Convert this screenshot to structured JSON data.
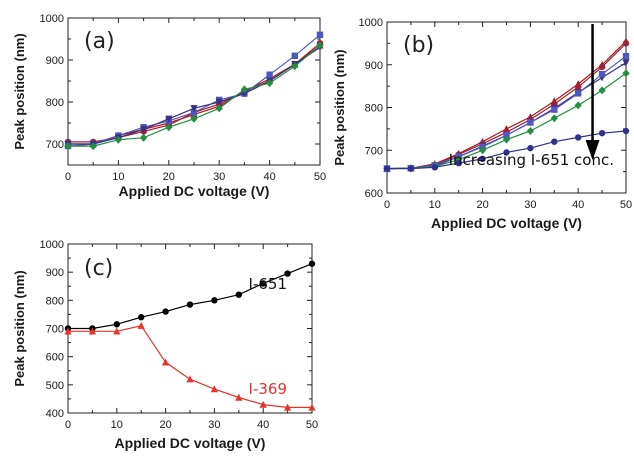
{
  "chart_data": [
    {
      "panel": "(a)",
      "type": "line",
      "xlabel": "Applied DC voltage (V)",
      "ylabel": "Peak position (nm)",
      "xlim": [
        0,
        50
      ],
      "ylim": [
        650,
        1000
      ],
      "xticks": [
        0,
        10,
        20,
        30,
        40,
        50
      ],
      "yticks": [
        700,
        800,
        900,
        1000
      ],
      "x": [
        0,
        5,
        10,
        15,
        20,
        25,
        30,
        35,
        40,
        45,
        50
      ],
      "series": [
        {
          "color": "#a0203a",
          "marker": "circle",
          "values": [
            705,
            705,
            715,
            730,
            745,
            775,
            795,
            825,
            850,
            890,
            940
          ]
        },
        {
          "color": "#b01818",
          "marker": "triangle",
          "values": [
            700,
            700,
            720,
            735,
            750,
            770,
            790,
            825,
            855,
            890,
            935
          ]
        },
        {
          "color": "#4e58c0",
          "marker": "square",
          "values": [
            695,
            700,
            720,
            740,
            755,
            775,
            805,
            820,
            865,
            910,
            960
          ]
        },
        {
          "color": "#3a2f80",
          "marker": "triangle-down",
          "values": [
            700,
            700,
            715,
            735,
            760,
            785,
            800,
            820,
            850,
            890,
            930
          ]
        },
        {
          "color": "#209040",
          "marker": "diamond",
          "values": [
            695,
            695,
            710,
            715,
            740,
            760,
            785,
            830,
            845,
            885,
            935
          ]
        }
      ]
    },
    {
      "panel": "(b)",
      "type": "line",
      "xlabel": "Applied DC voltage (V)",
      "ylabel": "Peak position (nm)",
      "xlim": [
        0,
        50
      ],
      "ylim": [
        600,
        1000
      ],
      "xticks": [
        0,
        10,
        20,
        30,
        40,
        50
      ],
      "yticks": [
        600,
        700,
        800,
        900,
        1000
      ],
      "annotation": "Increasing I-651 conc.",
      "x": [
        0,
        5,
        10,
        15,
        20,
        25,
        30,
        35,
        40,
        45,
        50
      ],
      "series": [
        {
          "color": "#b01818",
          "marker": "triangle",
          "values": [
            657,
            658,
            668,
            692,
            720,
            750,
            778,
            815,
            855,
            900,
            955
          ]
        },
        {
          "color": "#a0203a",
          "marker": "circle",
          "values": [
            657,
            658,
            665,
            690,
            715,
            742,
            772,
            808,
            848,
            895,
            950
          ]
        },
        {
          "color": "#3a2f80",
          "marker": "triangle-down",
          "values": [
            657,
            658,
            663,
            685,
            710,
            735,
            765,
            798,
            835,
            870,
            905
          ]
        },
        {
          "color": "#4e58c0",
          "marker": "square",
          "values": [
            657,
            658,
            665,
            685,
            708,
            735,
            765,
            795,
            833,
            878,
            920
          ]
        },
        {
          "color": "#209040",
          "marker": "diamond",
          "values": [
            657,
            658,
            662,
            678,
            700,
            725,
            745,
            775,
            805,
            840,
            880
          ]
        },
        {
          "color": "#303090",
          "marker": "circle",
          "values": [
            657,
            657,
            660,
            670,
            680,
            695,
            705,
            720,
            730,
            740,
            745
          ]
        }
      ]
    },
    {
      "panel": "(c)",
      "type": "line",
      "xlabel": "Applied DC voltage (V)",
      "ylabel": "Peak position (nm)",
      "xlim": [
        0,
        50
      ],
      "ylim": [
        400,
        1000
      ],
      "xticks": [
        0,
        10,
        20,
        30,
        40,
        50
      ],
      "yticks": [
        400,
        500,
        600,
        700,
        800,
        900,
        1000
      ],
      "x": [
        0,
        5,
        10,
        15,
        20,
        25,
        30,
        35,
        40,
        45,
        50
      ],
      "series": [
        {
          "name": "I-651",
          "color": "#000000",
          "marker": "circle",
          "values": [
            700,
            700,
            715,
            740,
            760,
            785,
            800,
            820,
            860,
            895,
            930
          ]
        },
        {
          "name": "I-369",
          "color": "#e8322c",
          "marker": "triangle",
          "values": [
            690,
            690,
            690,
            710,
            580,
            520,
            485,
            455,
            430,
            420,
            420
          ]
        }
      ]
    }
  ]
}
